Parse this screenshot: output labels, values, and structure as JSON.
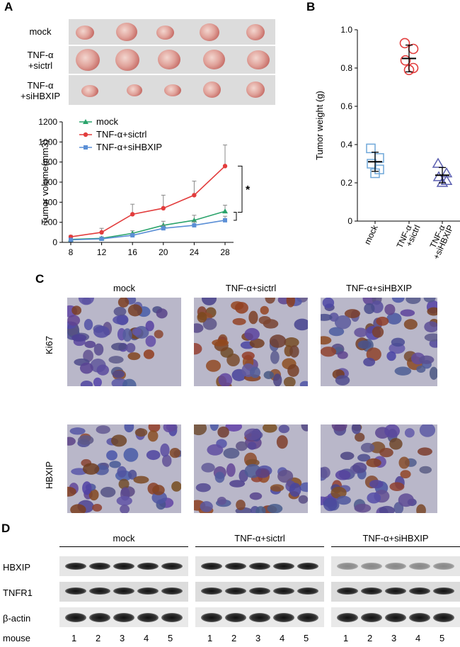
{
  "panels": {
    "a": "A",
    "b": "B",
    "c": "C",
    "d": "D"
  },
  "panelA": {
    "rows": [
      {
        "label_line1": "mock",
        "label_line2": ""
      },
      {
        "label_line1": "TNF-α",
        "label_line2": "+sictrl"
      },
      {
        "label_line1": "TNF-α",
        "label_line2": "+siHBXIP"
      }
    ]
  },
  "panelC": {
    "columns": [
      "mock",
      "TNF-α+sictrl",
      "TNF-α+siHBXIP"
    ],
    "rows": [
      "Ki67",
      "HBXIP"
    ]
  },
  "panelD": {
    "groups": [
      "mock",
      "TNF-α+sictrl",
      "TNF-α+siHBXIP"
    ],
    "rows": [
      "HBXIP",
      "TNFR1",
      "β-actin"
    ],
    "mouse_label": "mouse",
    "lanes": [
      "1",
      "2",
      "3",
      "4",
      "5"
    ]
  },
  "colors": {
    "mock": "#2aa36b",
    "sictrl": "#e23c3c",
    "siHBXIP": "#5b8fd6",
    "panelB_mock": "#6fa7d9",
    "panelB_sictrl": "#e23c3c",
    "panelB_siHBXIP": "#5b5fb0"
  },
  "chart_data": [
    {
      "type": "line",
      "title": "",
      "xlabel": "",
      "ylabel": "Tumor volume(mm3)",
      "x": [
        8,
        12,
        16,
        20,
        24,
        28
      ],
      "xticks": [
        "8",
        "12",
        "16",
        "20",
        "24",
        "28"
      ],
      "yticks": [
        "0",
        "200",
        "400",
        "600",
        "800",
        "1000",
        "1200"
      ],
      "ylim": [
        0,
        1200
      ],
      "legend": [
        "mock",
        "TNF-α+sictrl",
        "TNF-α+siHBXIP"
      ],
      "series": [
        {
          "name": "mock",
          "values": [
            30,
            40,
            90,
            170,
            220,
            310
          ],
          "errors": [
            10,
            15,
            25,
            40,
            50,
            60
          ]
        },
        {
          "name": "TNF-α+sictrl",
          "values": [
            55,
            100,
            280,
            340,
            470,
            760
          ],
          "errors": [
            15,
            40,
            100,
            130,
            140,
            210
          ]
        },
        {
          "name": "TNF-α+siHBXIP",
          "values": [
            25,
            35,
            70,
            140,
            170,
            220
          ],
          "errors": [
            8,
            12,
            20,
            30,
            35,
            40
          ]
        }
      ],
      "annotation": "*"
    },
    {
      "type": "scatter",
      "title": "",
      "ylabel": "Tumor weight (g)",
      "categories": [
        "mock",
        "TNF-α\n+sictrl",
        "TNF-α\n+siHBXIP"
      ],
      "category_lines": [
        [
          "mock"
        ],
        [
          "TNF-α",
          "+sictrl"
        ],
        [
          "TNF-α",
          "+siHBXIP"
        ]
      ],
      "yticks": [
        "0",
        "0.2",
        "0.4",
        "0.6",
        "0.8",
        "1.0"
      ],
      "ylim": [
        0,
        1.0
      ],
      "series": [
        {
          "name": "mock",
          "points": [
            0.38,
            0.33,
            0.3,
            0.27,
            0.25
          ],
          "mean": 0.31,
          "sd": 0.05
        },
        {
          "name": "TNF-α+sictrl",
          "points": [
            0.93,
            0.9,
            0.84,
            0.8,
            0.79
          ],
          "mean": 0.85,
          "sd": 0.07
        },
        {
          "name": "TNF-α+siHBXIP",
          "points": [
            0.3,
            0.25,
            0.23,
            0.21,
            0.2
          ],
          "mean": 0.24,
          "sd": 0.04
        }
      ]
    }
  ]
}
